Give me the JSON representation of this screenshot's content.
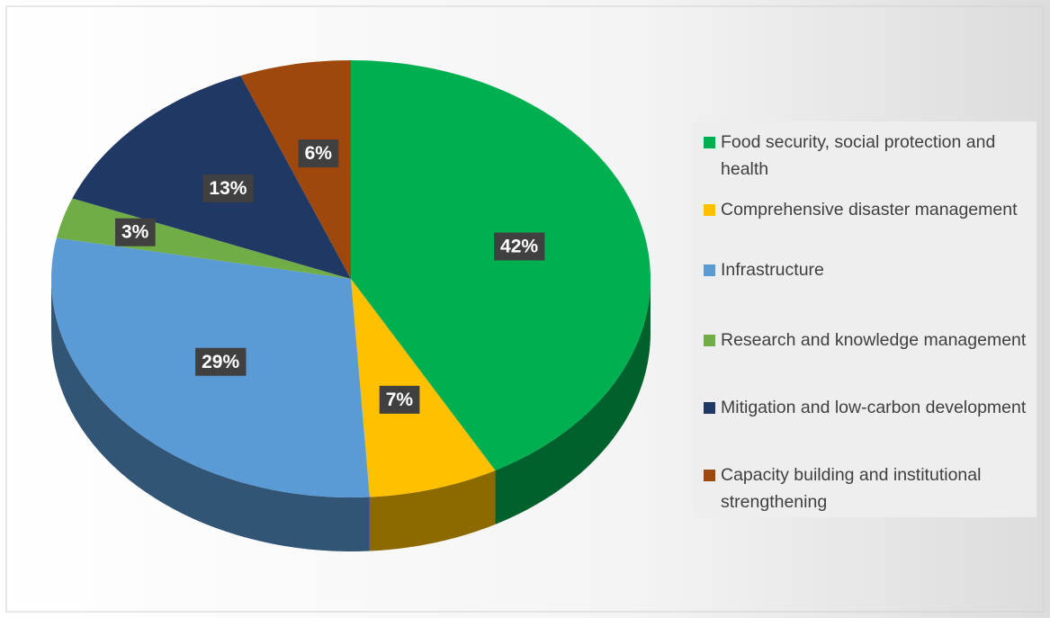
{
  "chart_data": {
    "type": "pie",
    "categories": [
      "Food security, social protection and health",
      "Comprehensive disaster management",
      "Infrastructure",
      "Research and knowledge management",
      "Mitigation and low-carbon development",
      "Capacity building and institutional strengthening"
    ],
    "values": [
      42,
      7,
      29,
      3,
      13,
      6
    ],
    "value_labels": [
      "42%",
      "7%",
      "29%",
      "3%",
      "13%",
      "6%"
    ],
    "colors": [
      "#00b050",
      "#ffc000",
      "#5b9bd5",
      "#70ad47",
      "#203864",
      "#9e480e"
    ]
  }
}
